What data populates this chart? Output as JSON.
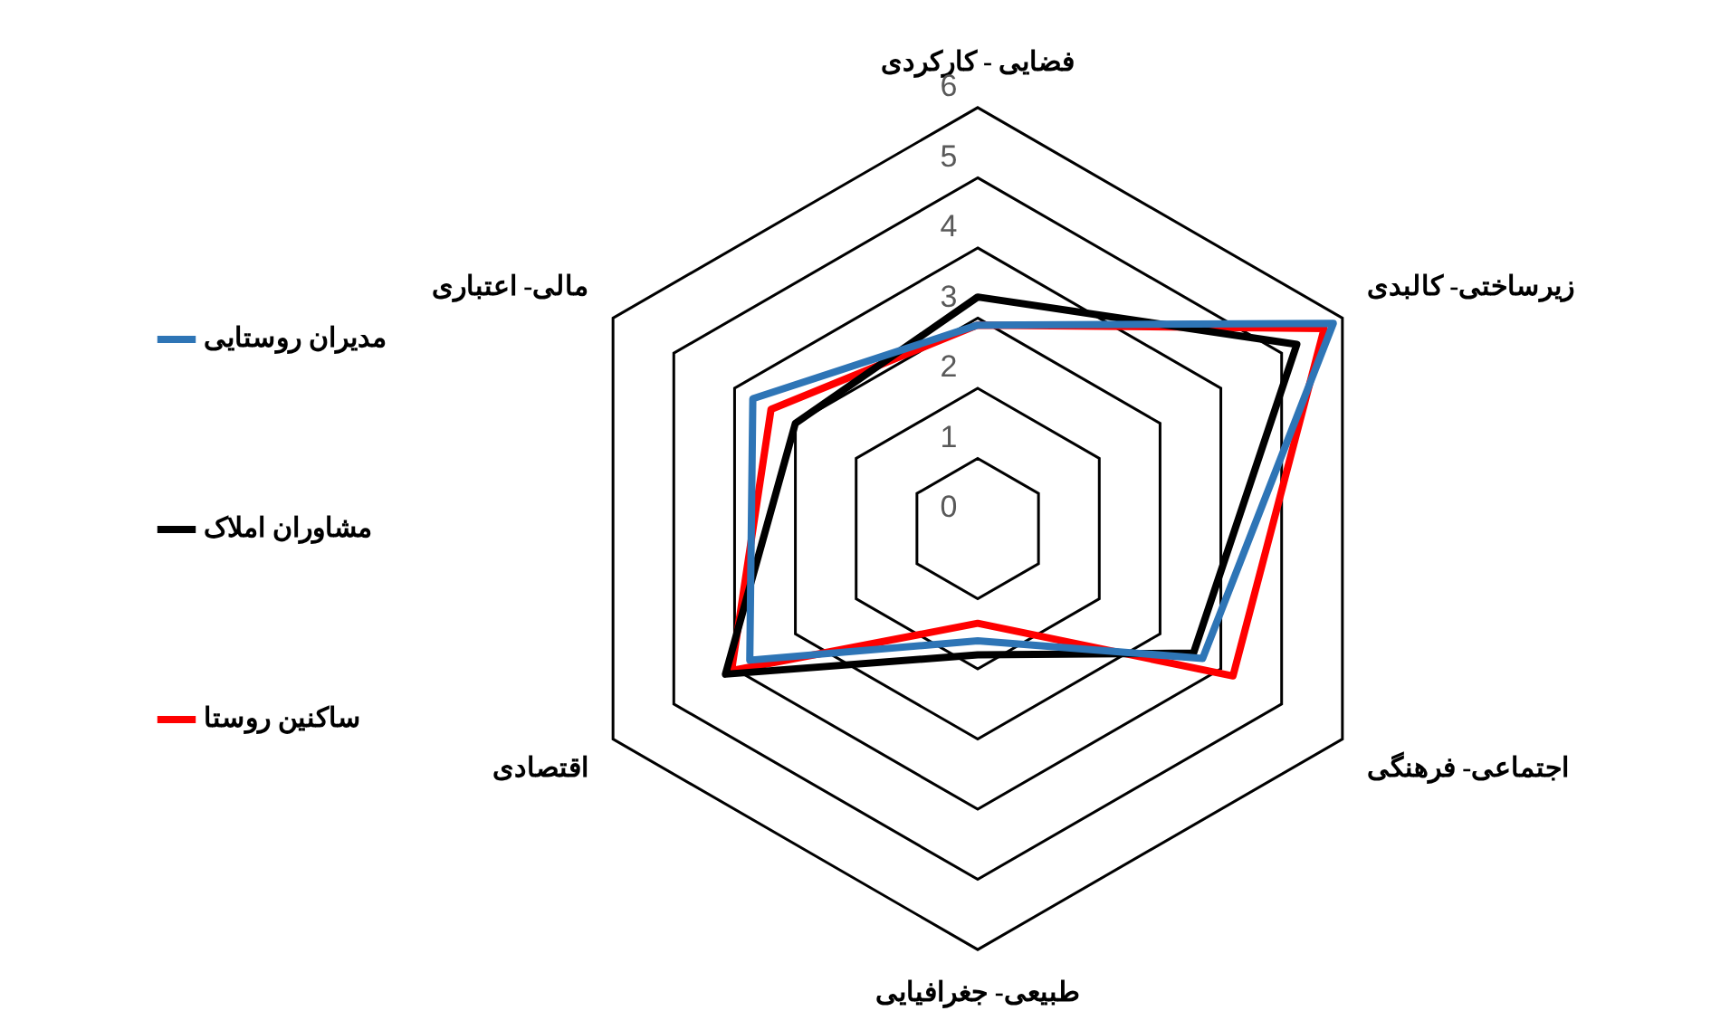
{
  "chart_data": {
    "type": "radar",
    "categories": [
      "فضایی - کارکردی",
      "زیرساختی- کالبدی",
      "اجتماعی- فرهنگی",
      "طبیعی- جغرافیایی",
      "اقتصادی",
      "مالی- اعتباری"
    ],
    "series": [
      {
        "name": "مدیران روستایی",
        "color": "#2e75b6",
        "values": [
          2.9,
          5.85,
          3.7,
          1.6,
          3.75,
          3.7
        ]
      },
      {
        "name": "مشاوران املاک",
        "color": "#000000",
        "values": [
          3.3,
          5.25,
          3.55,
          1.8,
          4.15,
          3.0
        ]
      },
      {
        "name": "ساکنین روستا",
        "color": "#ff0000",
        "values": [
          2.9,
          5.7,
          4.2,
          1.35,
          4.05,
          3.4
        ]
      }
    ],
    "ylim": [
      0,
      6
    ],
    "yticks": [
      0,
      1,
      2,
      3,
      4,
      5,
      6
    ],
    "grid": true,
    "legend": "left",
    "marker": "none",
    "line_style": "solid"
  }
}
